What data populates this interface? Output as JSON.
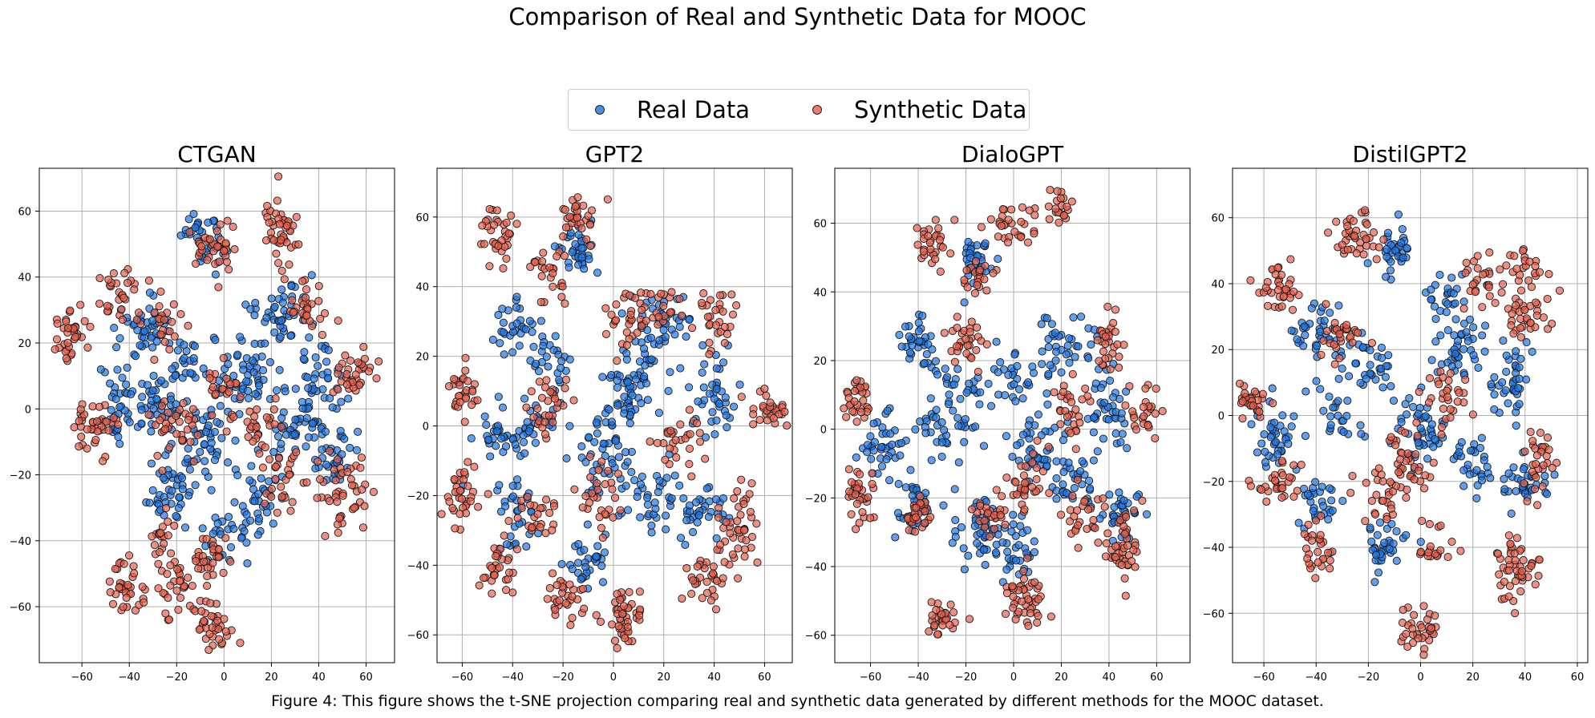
{
  "figure_title": "Comparison of Real and Synthetic Data for MOOC",
  "caption": "Figure 4: This figure shows the t-SNE projection comparing real and synthetic data generated by different methods for the MOOC dataset.",
  "legend": {
    "items": [
      {
        "label": "Real Data",
        "color": "#4a90e2"
      },
      {
        "label": "Synthetic Data",
        "color": "#ef7a68"
      }
    ],
    "placement": "top-center"
  },
  "colors": {
    "real_fill": "#1f77e6",
    "synthetic_fill": "#e8604c",
    "marker_edge": "#1a1a1a",
    "grid": "#b0b0b0"
  },
  "chart_data": [
    {
      "type": "scatter",
      "title": "CTGAN",
      "xlim": [
        -78,
        72
      ],
      "ylim": [
        -77,
        73
      ],
      "xticks": [
        -60,
        -40,
        -20,
        0,
        20,
        40,
        60
      ],
      "yticks": [
        -60,
        -40,
        -20,
        0,
        20,
        40,
        60
      ],
      "grid": true,
      "series": [
        {
          "name": "Real Data",
          "clusters": [
            [
              -8,
              52,
              6,
              6,
              35
            ],
            [
              -35,
              25,
              8,
              6,
              40
            ],
            [
              -45,
              0,
              6,
              8,
              40
            ],
            [
              -25,
              -25,
              8,
              6,
              35
            ],
            [
              -10,
              -10,
              10,
              10,
              60
            ],
            [
              10,
              10,
              10,
              8,
              55
            ],
            [
              25,
              30,
              8,
              6,
              40
            ],
            [
              40,
              10,
              8,
              10,
              45
            ],
            [
              45,
              -15,
              6,
              8,
              35
            ],
            [
              15,
              -25,
              8,
              8,
              40
            ],
            [
              -30,
              5,
              6,
              6,
              30
            ],
            [
              0,
              -40,
              6,
              5,
              25
            ],
            [
              30,
              -5,
              6,
              6,
              30
            ],
            [
              -15,
              15,
              6,
              6,
              25
            ]
          ]
        },
        {
          "name": "Synthetic Data",
          "clusters": [
            [
              -65,
              22,
              6,
              6,
              35
            ],
            [
              -55,
              -5,
              6,
              6,
              40
            ],
            [
              -45,
              35,
              6,
              6,
              30
            ],
            [
              -5,
              48,
              6,
              6,
              35
            ],
            [
              25,
              55,
              5,
              8,
              45
            ],
            [
              35,
              30,
              6,
              6,
              30
            ],
            [
              55,
              10,
              6,
              6,
              35
            ],
            [
              50,
              -25,
              8,
              8,
              45
            ],
            [
              25,
              -20,
              6,
              6,
              30
            ],
            [
              -20,
              -5,
              8,
              6,
              35
            ],
            [
              -40,
              -55,
              6,
              6,
              35
            ],
            [
              -20,
              -55,
              6,
              6,
              30
            ],
            [
              -5,
              -45,
              6,
              6,
              30
            ],
            [
              -5,
              -65,
              5,
              5,
              35
            ],
            [
              0,
              5,
              6,
              6,
              25
            ],
            [
              -25,
              25,
              6,
              6,
              25
            ],
            [
              15,
              -5,
              6,
              6,
              25
            ],
            [
              -25,
              -40,
              6,
              6,
              20
            ]
          ]
        }
      ]
    },
    {
      "type": "scatter",
      "title": "GPT2",
      "xlim": [
        -70,
        71
      ],
      "ylim": [
        -68,
        74
      ],
      "xticks": [
        -60,
        -40,
        -20,
        0,
        20,
        40,
        60
      ],
      "yticks": [
        -60,
        -40,
        -20,
        0,
        20,
        40,
        60
      ],
      "grid": true,
      "series": [
        {
          "name": "Real Data",
          "clusters": [
            [
              -15,
              50,
              5,
              5,
              35
            ],
            [
              -40,
              28,
              6,
              5,
              30
            ],
            [
              -45,
              -5,
              6,
              6,
              35
            ],
            [
              -40,
              -25,
              6,
              6,
              30
            ],
            [
              -10,
              -40,
              6,
              6,
              35
            ],
            [
              -5,
              -10,
              8,
              8,
              45
            ],
            [
              10,
              15,
              8,
              8,
              45
            ],
            [
              20,
              30,
              8,
              5,
              35
            ],
            [
              40,
              10,
              6,
              8,
              40
            ],
            [
              35,
              -25,
              8,
              6,
              35
            ],
            [
              15,
              -20,
              8,
              6,
              35
            ],
            [
              -25,
              20,
              6,
              6,
              25
            ],
            [
              5,
              5,
              6,
              6,
              25
            ],
            [
              -30,
              0,
              6,
              6,
              25
            ]
          ]
        },
        {
          "name": "Synthetic Data",
          "clusters": [
            [
              -45,
              55,
              6,
              6,
              35
            ],
            [
              -15,
              60,
              5,
              4,
              30
            ],
            [
              -25,
              45,
              6,
              5,
              25
            ],
            [
              -60,
              10,
              4,
              5,
              30
            ],
            [
              -60,
              -20,
              4,
              6,
              35
            ],
            [
              -45,
              -40,
              5,
              5,
              30
            ],
            [
              -20,
              -50,
              5,
              5,
              30
            ],
            [
              5,
              -55,
              5,
              6,
              45
            ],
            [
              35,
              -45,
              5,
              5,
              30
            ],
            [
              50,
              -30,
              6,
              8,
              45
            ],
            [
              60,
              5,
              5,
              5,
              30
            ],
            [
              40,
              30,
              6,
              6,
              30
            ],
            [
              5,
              30,
              6,
              6,
              30
            ],
            [
              -25,
              5,
              6,
              6,
              30
            ],
            [
              25,
              -5,
              6,
              6,
              30
            ],
            [
              -5,
              -20,
              6,
              6,
              30
            ],
            [
              -30,
              -25,
              6,
              6,
              25
            ],
            [
              20,
              35,
              5,
              4,
              20
            ]
          ]
        }
      ]
    },
    {
      "type": "scatter",
      "title": "DialoGPT",
      "xlim": [
        -75,
        74
      ],
      "ylim": [
        -68,
        76
      ],
      "xticks": [
        -60,
        -40,
        -20,
        0,
        20,
        40,
        60
      ],
      "yticks": [
        -60,
        -40,
        -20,
        0,
        20,
        40,
        60
      ],
      "grid": true,
      "series": [
        {
          "name": "Real Data",
          "clusters": [
            [
              -15,
              50,
              5,
              5,
              35
            ],
            [
              -40,
              25,
              6,
              6,
              35
            ],
            [
              -55,
              -5,
              6,
              6,
              40
            ],
            [
              -40,
              -20,
              6,
              6,
              30
            ],
            [
              -15,
              -30,
              8,
              6,
              40
            ],
            [
              0,
              -35,
              6,
              6,
              35
            ],
            [
              10,
              -5,
              8,
              8,
              45
            ],
            [
              20,
              25,
              8,
              6,
              40
            ],
            [
              40,
              5,
              6,
              8,
              40
            ],
            [
              45,
              -25,
              6,
              6,
              35
            ],
            [
              -20,
              10,
              8,
              8,
              35
            ],
            [
              25,
              -15,
              6,
              6,
              30
            ],
            [
              -30,
              0,
              6,
              6,
              25
            ],
            [
              0,
              15,
              6,
              6,
              25
            ]
          ]
        },
        {
          "name": "Synthetic Data",
          "clusters": [
            [
              -35,
              55,
              6,
              5,
              30
            ],
            [
              0,
              60,
              8,
              4,
              30
            ],
            [
              20,
              65,
              3,
              3,
              20
            ],
            [
              -65,
              8,
              4,
              4,
              30
            ],
            [
              -65,
              -20,
              4,
              5,
              35
            ],
            [
              -40,
              -25,
              4,
              4,
              30
            ],
            [
              -30,
              -55,
              5,
              4,
              30
            ],
            [
              5,
              -50,
              5,
              6,
              45
            ],
            [
              45,
              -35,
              5,
              8,
              45
            ],
            [
              40,
              25,
              5,
              5,
              30
            ],
            [
              55,
              5,
              5,
              5,
              25
            ],
            [
              -20,
              25,
              6,
              5,
              30
            ],
            [
              5,
              -15,
              5,
              6,
              30
            ],
            [
              25,
              5,
              6,
              6,
              30
            ],
            [
              -10,
              -25,
              6,
              6,
              25
            ],
            [
              30,
              -25,
              6,
              6,
              25
            ],
            [
              -15,
              45,
              5,
              4,
              20
            ]
          ]
        }
      ]
    },
    {
      "type": "scatter",
      "title": "DistilGPT2",
      "xlim": [
        -72,
        64
      ],
      "ylim": [
        -75,
        75
      ],
      "xticks": [
        -60,
        -40,
        -20,
        0,
        20,
        40,
        60
      ],
      "yticks": [
        -60,
        -40,
        -20,
        0,
        20,
        40,
        60
      ],
      "grid": true,
      "series": [
        {
          "name": "Real Data",
          "clusters": [
            [
              -10,
              50,
              5,
              5,
              35
            ],
            [
              -40,
              25,
              6,
              6,
              35
            ],
            [
              -55,
              -5,
              6,
              6,
              40
            ],
            [
              -40,
              -25,
              6,
              6,
              30
            ],
            [
              -15,
              -40,
              6,
              6,
              35
            ],
            [
              0,
              -5,
              8,
              8,
              45
            ],
            [
              15,
              20,
              8,
              6,
              40
            ],
            [
              35,
              10,
              6,
              8,
              40
            ],
            [
              40,
              -20,
              6,
              6,
              35
            ],
            [
              20,
              -15,
              6,
              6,
              30
            ],
            [
              -20,
              15,
              8,
              6,
              35
            ],
            [
              -30,
              0,
              6,
              6,
              25
            ],
            [
              10,
              35,
              5,
              5,
              25
            ]
          ]
        },
        {
          "name": "Synthetic Data",
          "clusters": [
            [
              -25,
              55,
              6,
              6,
              40
            ],
            [
              -55,
              38,
              6,
              5,
              35
            ],
            [
              -65,
              5,
              4,
              4,
              30
            ],
            [
              -55,
              -20,
              5,
              5,
              30
            ],
            [
              -40,
              -40,
              5,
              5,
              30
            ],
            [
              0,
              -65,
              5,
              4,
              35
            ],
            [
              35,
              -45,
              6,
              8,
              50
            ],
            [
              45,
              -15,
              5,
              6,
              30
            ],
            [
              40,
              30,
              6,
              6,
              35
            ],
            [
              25,
              40,
              6,
              6,
              30
            ],
            [
              -5,
              -15,
              6,
              8,
              40
            ],
            [
              -30,
              25,
              6,
              5,
              30
            ],
            [
              10,
              5,
              6,
              6,
              30
            ],
            [
              -15,
              -25,
              6,
              6,
              25
            ],
            [
              5,
              -40,
              5,
              5,
              20
            ],
            [
              40,
              45,
              4,
              4,
              20
            ]
          ]
        }
      ]
    }
  ]
}
